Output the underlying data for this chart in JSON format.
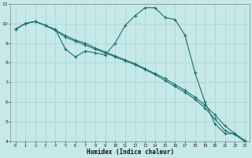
{
  "xlabel": "Humidex (Indice chaleur)",
  "background_color": "#c5e8e8",
  "grid_color": "#afd4d4",
  "line_color": "#1a7070",
  "xlim": [
    -0.5,
    23.5
  ],
  "ylim": [
    4,
    11
  ],
  "yticks": [
    4,
    5,
    6,
    7,
    8,
    9,
    10,
    11
  ],
  "xticks": [
    0,
    1,
    2,
    3,
    4,
    5,
    6,
    7,
    8,
    9,
    10,
    11,
    12,
    13,
    14,
    15,
    16,
    17,
    18,
    19,
    20,
    21,
    22,
    23
  ],
  "line1_x": [
    0,
    1,
    2,
    3,
    4,
    5,
    6,
    7,
    8,
    9,
    10,
    11,
    12,
    13,
    14,
    15,
    16,
    17,
    18,
    19,
    20,
    21,
    22,
    23
  ],
  "line1_y": [
    9.7,
    10.0,
    10.1,
    9.9,
    9.7,
    8.7,
    8.3,
    8.6,
    8.5,
    8.4,
    9.0,
    9.9,
    10.4,
    10.8,
    10.8,
    10.3,
    10.2,
    9.4,
    7.5,
    6.0,
    4.9,
    4.4,
    4.4,
    4.0
  ],
  "line2_x": [
    0,
    1,
    2,
    3,
    4,
    5,
    6,
    7,
    8,
    9,
    10,
    11,
    12,
    13,
    14,
    15,
    16,
    17,
    18,
    19,
    20,
    21,
    22,
    23
  ],
  "line2_y": [
    9.7,
    10.0,
    10.1,
    9.9,
    9.65,
    9.4,
    9.15,
    9.0,
    8.75,
    8.55,
    8.35,
    8.15,
    7.95,
    7.7,
    7.45,
    7.2,
    6.9,
    6.6,
    6.25,
    5.85,
    5.35,
    4.8,
    4.4,
    4.05
  ],
  "line3_x": [
    0,
    1,
    2,
    3,
    4,
    5,
    6,
    7,
    8,
    9,
    10,
    11,
    12,
    13,
    14,
    15,
    16,
    17,
    18,
    19,
    20,
    21,
    22,
    23
  ],
  "line3_y": [
    9.7,
    10.0,
    10.1,
    9.9,
    9.65,
    9.3,
    9.1,
    8.9,
    8.7,
    8.5,
    8.3,
    8.1,
    7.9,
    7.65,
    7.4,
    7.1,
    6.8,
    6.5,
    6.15,
    5.7,
    5.15,
    4.55,
    4.35,
    4.0
  ]
}
